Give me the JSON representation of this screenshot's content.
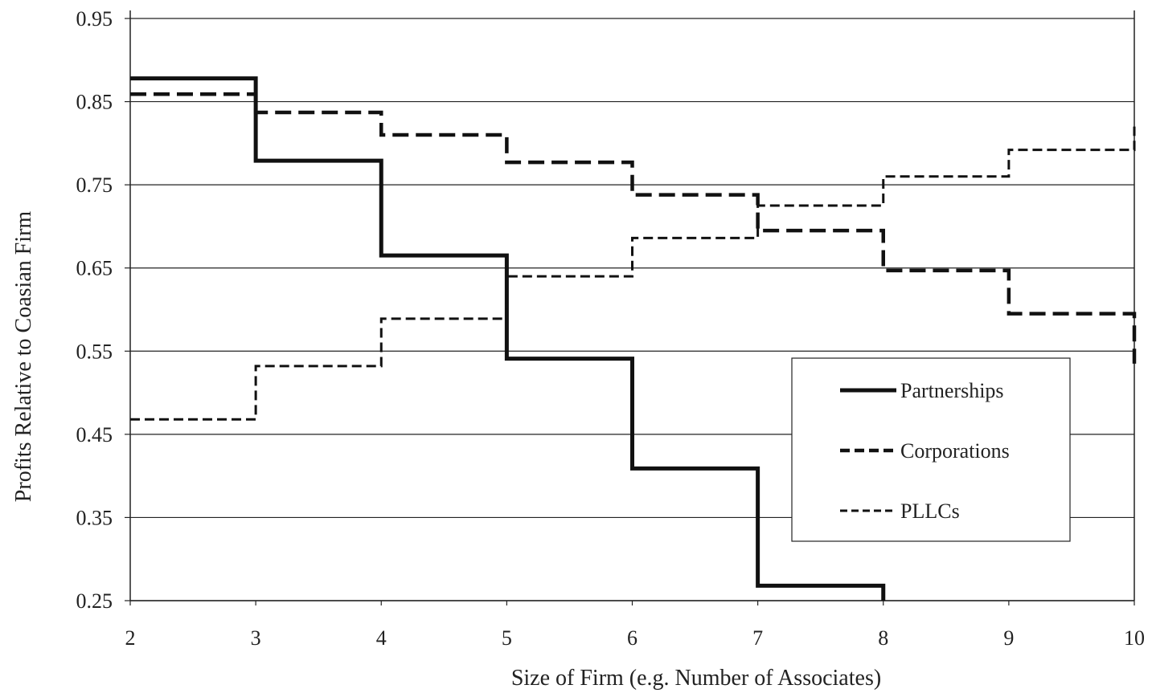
{
  "chart_data": {
    "type": "line",
    "step": true,
    "xlabel": "Size of Firm (e.g. Number of Associates)",
    "ylabel": "Profits Relative to Coasian Firm",
    "xlim": [
      2,
      10
    ],
    "ylim": [
      0.25,
      0.95
    ],
    "xticks": [
      "2",
      "3",
      "4",
      "5",
      "6",
      "7",
      "8",
      "9",
      "10"
    ],
    "yticks": [
      "0.25",
      "0.35",
      "0.45",
      "0.55",
      "0.65",
      "0.75",
      "0.85",
      "0.95"
    ],
    "grid": "horizontal",
    "legend_position": "right",
    "series": [
      {
        "name": "Partnerships",
        "style": "solid",
        "x": [
          2,
          3,
          4,
          5,
          6,
          7,
          8
        ],
        "y": [
          0.878,
          0.779,
          0.665,
          0.541,
          0.409,
          0.268,
          0.25
        ]
      },
      {
        "name": "Corporations",
        "style": "dashed",
        "x": [
          2,
          3,
          4,
          5,
          6,
          7,
          8,
          9,
          10
        ],
        "y": [
          0.859,
          0.837,
          0.81,
          0.777,
          0.738,
          0.695,
          0.647,
          0.595,
          0.535
        ]
      },
      {
        "name": "PLLCs",
        "style": "short-dashed",
        "x": [
          2,
          3,
          4,
          5,
          6,
          7,
          8,
          9,
          10
        ],
        "y": [
          0.468,
          0.532,
          0.589,
          0.64,
          0.686,
          0.725,
          0.76,
          0.792,
          0.82
        ]
      }
    ]
  }
}
